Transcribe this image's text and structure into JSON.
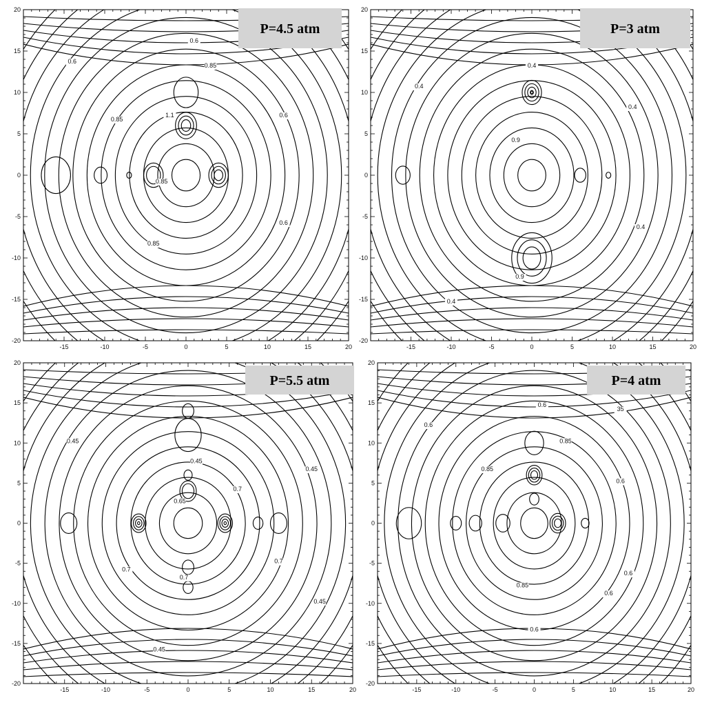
{
  "chart_data": [
    {
      "type": "contour",
      "title": "P=4.5 atm",
      "xlim": [
        -20,
        20
      ],
      "ylim": [
        -20,
        20
      ],
      "x_ticks": [
        "-15",
        "-10",
        "-5",
        "0",
        "5",
        "10",
        "15",
        "20"
      ],
      "y_ticks": [
        "20",
        "15",
        "10",
        "5",
        "0",
        "-5",
        "-10",
        "-15",
        "-20"
      ],
      "contour_labels": [
        {
          "text": "0.6",
          "x": 1,
          "y": 16
        },
        {
          "text": "0.6",
          "x": -14,
          "y": 13.5
        },
        {
          "text": "0.85",
          "x": 3,
          "y": 13
        },
        {
          "text": "0.85",
          "x": -8.5,
          "y": 6.5
        },
        {
          "text": "1.1",
          "x": -2,
          "y": 7
        },
        {
          "text": "0.6",
          "x": 12,
          "y": 7
        },
        {
          "text": "0.85",
          "x": -3,
          "y": -1
        },
        {
          "text": "0.6",
          "x": 12,
          "y": -6
        },
        {
          "text": "0.85",
          "x": -4,
          "y": -8.5
        }
      ],
      "extrema": [
        {
          "x": -16,
          "y": 0,
          "r": 1.8,
          "n": 1
        },
        {
          "x": -10.5,
          "y": 0,
          "r": 0.8,
          "n": 1
        },
        {
          "x": -7,
          "y": 0,
          "r": 0.3,
          "n": 1
        },
        {
          "x": -4,
          "y": 0,
          "r": 1.2,
          "n": 2
        },
        {
          "x": 4,
          "y": 0,
          "r": 1.2,
          "n": 3
        },
        {
          "x": 0,
          "y": 10,
          "r": 1.5,
          "n": 1
        },
        {
          "x": 0,
          "y": 6,
          "r": 1.3,
          "n": 3
        }
      ]
    },
    {
      "type": "contour",
      "title": "P=3 atm",
      "xlim": [
        -20,
        20
      ],
      "ylim": [
        -20,
        20
      ],
      "x_ticks": [
        "-15",
        "-10",
        "-5",
        "0",
        "5",
        "10",
        "15",
        "20"
      ],
      "y_ticks": [
        "20",
        "15",
        "10",
        "5",
        "0",
        "-5",
        "-10",
        "-15",
        "-20"
      ],
      "contour_labels": [
        {
          "text": "0.4",
          "x": 0,
          "y": 13
        },
        {
          "text": "0.4",
          "x": -14,
          "y": 10.5
        },
        {
          "text": "0.4",
          "x": 12.5,
          "y": 8
        },
        {
          "text": "0.9",
          "x": -2,
          "y": 4
        },
        {
          "text": "0.4",
          "x": 13.5,
          "y": -6.5
        },
        {
          "text": "0.9",
          "x": -1.5,
          "y": -12.5
        },
        {
          "text": "0.4",
          "x": -10,
          "y": -15.5
        }
      ],
      "extrema": [
        {
          "x": -16,
          "y": 0,
          "r": 0.9,
          "n": 1
        },
        {
          "x": 6,
          "y": 0,
          "r": 0.7,
          "n": 1
        },
        {
          "x": 9.5,
          "y": 0,
          "r": 0.3,
          "n": 1
        },
        {
          "x": 0,
          "y": 10,
          "r": 1.2,
          "n": 5
        },
        {
          "x": 0,
          "y": -10,
          "r": 2.5,
          "n": 3
        }
      ]
    },
    {
      "type": "contour",
      "title": "P=5.5 atm",
      "xlim": [
        -20,
        20
      ],
      "ylim": [
        -20,
        20
      ],
      "x_ticks": [
        "-15",
        "-10",
        "-5",
        "0",
        "5",
        "10",
        "15",
        "20"
      ],
      "y_ticks": [
        "20",
        "15",
        "10",
        "5",
        "0",
        "-5",
        "-10",
        "-15",
        "-20"
      ],
      "contour_labels": [
        {
          "text": "0.45",
          "x": -14,
          "y": 10
        },
        {
          "text": "0.45",
          "x": 1,
          "y": 7.5
        },
        {
          "text": "0.45",
          "x": 15,
          "y": 6.5
        },
        {
          "text": "0.7",
          "x": 6,
          "y": 4
        },
        {
          "text": "0.65",
          "x": -1,
          "y": 2.5
        },
        {
          "text": "0.7",
          "x": -7.5,
          "y": -6
        },
        {
          "text": "0.7",
          "x": 11,
          "y": -5
        },
        {
          "text": "0.7",
          "x": -0.5,
          "y": -7
        },
        {
          "text": "0.45",
          "x": 16,
          "y": -10
        },
        {
          "text": "0.45",
          "x": -3.5,
          "y": -16
        }
      ],
      "extrema": [
        {
          "x": -14.5,
          "y": 0,
          "r": 1.0,
          "n": 1
        },
        {
          "x": -6,
          "y": 0,
          "r": 0.9,
          "n": 4
        },
        {
          "x": 4.5,
          "y": 0,
          "r": 0.9,
          "n": 4
        },
        {
          "x": 8.5,
          "y": 0,
          "r": 0.6,
          "n": 1
        },
        {
          "x": 11,
          "y": 0,
          "r": 1.0,
          "n": 1
        },
        {
          "x": 0,
          "y": 14,
          "r": 0.7,
          "n": 1
        },
        {
          "x": 0,
          "y": 11,
          "r": 1.6,
          "n": 1
        },
        {
          "x": 0,
          "y": 6,
          "r": 0.5,
          "n": 1
        },
        {
          "x": 0,
          "y": 4,
          "r": 1.0,
          "n": 2
        },
        {
          "x": 0,
          "y": -5.5,
          "r": 0.7,
          "n": 1
        },
        {
          "x": 0,
          "y": -8,
          "r": 0.6,
          "n": 1
        }
      ]
    },
    {
      "type": "contour",
      "title": "P=4 atm",
      "xlim": [
        -20,
        20
      ],
      "ylim": [
        -20,
        20
      ],
      "x_ticks": [
        "-15",
        "-10",
        "-5",
        "0",
        "5",
        "10",
        "15",
        "20"
      ],
      "y_ticks": [
        "20",
        "15",
        "10",
        "5",
        "0",
        "-5",
        "-10",
        "-15",
        "-20"
      ],
      "contour_labels": [
        {
          "text": "0.6",
          "x": 1,
          "y": 14.5
        },
        {
          "text": "35",
          "x": 11,
          "y": 14
        },
        {
          "text": "0.6",
          "x": -13.5,
          "y": 12
        },
        {
          "text": "0.85",
          "x": 4,
          "y": 10
        },
        {
          "text": "0.85",
          "x": -6,
          "y": 6.5
        },
        {
          "text": "0.6",
          "x": 11,
          "y": 5
        },
        {
          "text": "0.85",
          "x": -1.5,
          "y": -8
        },
        {
          "text": "0.6",
          "x": 9.5,
          "y": -9
        },
        {
          "text": "0.6",
          "x": 12,
          "y": -6.5
        },
        {
          "text": "0.6",
          "x": 0,
          "y": -13.5
        }
      ],
      "extrema": [
        {
          "x": -16,
          "y": 0,
          "r": 1.6,
          "n": 1
        },
        {
          "x": -10,
          "y": 0,
          "r": 0.7,
          "n": 1
        },
        {
          "x": -7.5,
          "y": 0,
          "r": 0.8,
          "n": 1
        },
        {
          "x": -4,
          "y": 0,
          "r": 0.9,
          "n": 1
        },
        {
          "x": 3,
          "y": 0,
          "r": 1.0,
          "n": 3
        },
        {
          "x": 6.5,
          "y": 0,
          "r": 0.5,
          "n": 1
        },
        {
          "x": 0,
          "y": 10,
          "r": 1.2,
          "n": 1
        },
        {
          "x": 0,
          "y": 6,
          "r": 1.0,
          "n": 3
        },
        {
          "x": 0,
          "y": 3,
          "r": 0.6,
          "n": 1
        }
      ]
    }
  ]
}
